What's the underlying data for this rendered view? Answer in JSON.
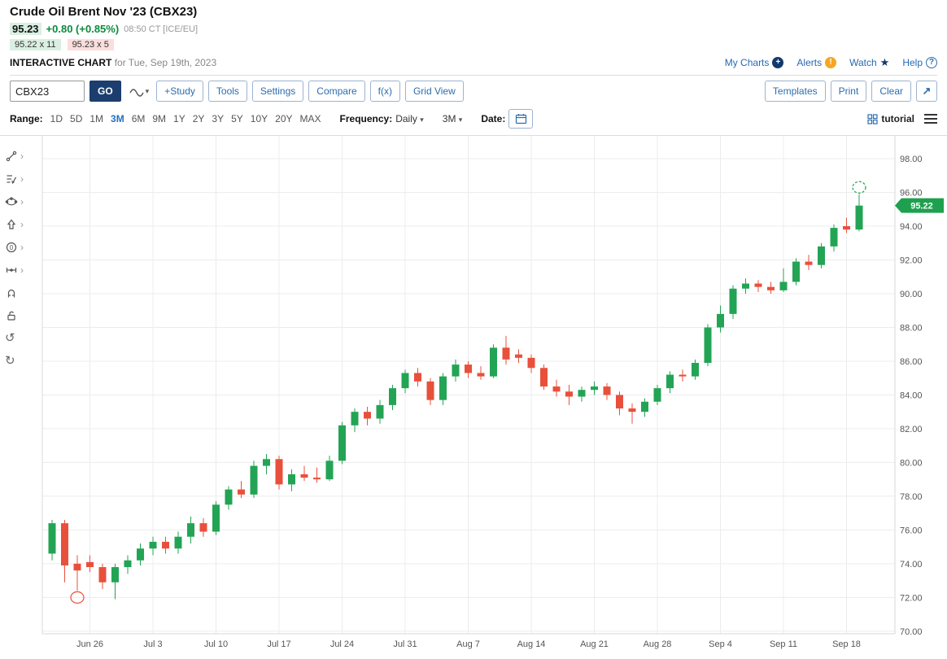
{
  "header": {
    "title": "Crude Oil Brent Nov '23 (CBX23)",
    "last_price": "95.23",
    "change": "+0.80 (+0.85%)",
    "time": "08:50 CT [ICE/EU]",
    "bid": "95.22 x 11",
    "ask": "95.23 x 5",
    "chart_label": "INTERACTIVE CHART",
    "chart_date": "for Tue, Sep 19th, 2023",
    "links": {
      "my_charts": "My Charts",
      "alerts": "Alerts",
      "watch": "Watch",
      "help": "Help"
    }
  },
  "toolbar": {
    "symbol_input": "CBX23",
    "go": "GO",
    "buttons": [
      "+Study",
      "Tools",
      "Settings",
      "Compare",
      "f(x)",
      "Grid View"
    ],
    "templates": "Templates",
    "print": "Print",
    "clear": "Clear",
    "expand_icon": "↗"
  },
  "range_bar": {
    "range_label": "Range:",
    "ranges": [
      "1D",
      "5D",
      "1M",
      "3M",
      "6M",
      "9M",
      "1Y",
      "2Y",
      "3Y",
      "5Y",
      "10Y",
      "20Y",
      "MAX"
    ],
    "selected_range": "3M",
    "frequency_label": "Frequency:",
    "frequency_value": "Daily",
    "period_value": "3M",
    "date_label": "Date:",
    "tutorial": "tutorial"
  },
  "chart_tools": [
    "trendline",
    "annotation",
    "shapes",
    "arrow",
    "counter",
    "measure",
    "magnet",
    "lock",
    "undo",
    "redo"
  ],
  "chart_data": {
    "type": "candlestick",
    "symbol": "CBX23",
    "title": "Crude Oil Brent Nov '23 daily candlesticks, Jun 21 - Sep 19 2023",
    "ylim": [
      69.85,
      99.35
    ],
    "y_ticks": [
      70,
      72,
      74,
      76,
      78,
      80,
      82,
      84,
      86,
      88,
      90,
      92,
      94,
      96,
      98
    ],
    "x_labels": [
      "Jun 26",
      "Jul 3",
      "Jul 10",
      "Jul 17",
      "Jul 24",
      "Jul 31",
      "Aug 7",
      "Aug 14",
      "Aug 21",
      "Aug 28",
      "Sep 4",
      "Sep 11",
      "Sep 18"
    ],
    "x_label_indices": [
      3,
      8,
      13,
      18,
      23,
      28,
      33,
      38,
      43,
      48,
      53,
      58,
      63
    ],
    "last_price": 95.22,
    "last_price_label": "95.22",
    "up_color": "#23a455",
    "down_color": "#e8503c",
    "tag_color": "#1fa04e",
    "grid": true,
    "ohlc_columns": [
      "open",
      "high",
      "low",
      "close"
    ],
    "ohlc": [
      [
        74.6,
        76.6,
        74.2,
        76.4
      ],
      [
        76.4,
        76.6,
        72.9,
        73.9
      ],
      [
        74.0,
        74.5,
        72.4,
        73.6
      ],
      [
        74.1,
        74.5,
        73.5,
        73.8
      ],
      [
        73.8,
        74.0,
        72.5,
        72.9
      ],
      [
        72.9,
        74.0,
        71.9,
        73.8
      ],
      [
        73.8,
        74.5,
        73.4,
        74.2
      ],
      [
        74.2,
        75.2,
        73.9,
        74.9
      ],
      [
        74.9,
        75.6,
        74.5,
        75.3
      ],
      [
        75.3,
        75.6,
        74.6,
        74.9
      ],
      [
        74.9,
        75.9,
        74.6,
        75.6
      ],
      [
        75.6,
        76.8,
        75.2,
        76.4
      ],
      [
        76.4,
        76.7,
        75.6,
        75.9
      ],
      [
        75.9,
        77.7,
        75.7,
        77.5
      ],
      [
        77.5,
        78.6,
        77.2,
        78.4
      ],
      [
        78.4,
        78.9,
        77.9,
        78.1
      ],
      [
        78.1,
        80.1,
        77.9,
        79.8
      ],
      [
        79.8,
        80.5,
        79.3,
        80.2
      ],
      [
        80.2,
        80.4,
        78.4,
        78.7
      ],
      [
        78.7,
        79.6,
        78.3,
        79.3
      ],
      [
        79.3,
        79.8,
        78.9,
        79.1
      ],
      [
        79.1,
        79.7,
        78.8,
        79.0
      ],
      [
        79.0,
        80.4,
        78.9,
        80.1
      ],
      [
        80.1,
        82.4,
        79.9,
        82.2
      ],
      [
        82.2,
        83.2,
        81.8,
        83.0
      ],
      [
        83.0,
        83.3,
        82.2,
        82.6
      ],
      [
        82.6,
        83.7,
        82.3,
        83.4
      ],
      [
        83.4,
        84.6,
        83.1,
        84.4
      ],
      [
        84.4,
        85.5,
        84.1,
        85.3
      ],
      [
        85.3,
        85.6,
        84.5,
        84.8
      ],
      [
        84.8,
        85.0,
        83.4,
        83.7
      ],
      [
        83.7,
        85.3,
        83.4,
        85.1
      ],
      [
        85.1,
        86.1,
        84.8,
        85.8
      ],
      [
        85.8,
        86.0,
        85.0,
        85.3
      ],
      [
        85.3,
        85.7,
        84.9,
        85.1
      ],
      [
        85.1,
        87.0,
        85.0,
        86.8
      ],
      [
        86.8,
        87.5,
        85.8,
        86.1
      ],
      [
        86.4,
        86.7,
        85.9,
        86.2
      ],
      [
        86.2,
        86.4,
        85.3,
        85.6
      ],
      [
        85.6,
        85.8,
        84.3,
        84.5
      ],
      [
        84.5,
        84.9,
        83.9,
        84.2
      ],
      [
        84.2,
        84.6,
        83.4,
        83.9
      ],
      [
        83.9,
        84.5,
        83.6,
        84.3
      ],
      [
        84.3,
        84.8,
        84.0,
        84.5
      ],
      [
        84.5,
        84.7,
        83.7,
        84.0
      ],
      [
        84.0,
        84.2,
        82.8,
        83.2
      ],
      [
        83.2,
        83.5,
        82.3,
        83.0
      ],
      [
        83.0,
        83.8,
        82.7,
        83.6
      ],
      [
        83.6,
        84.6,
        83.4,
        84.4
      ],
      [
        84.4,
        85.4,
        84.1,
        85.2
      ],
      [
        85.2,
        85.5,
        84.8,
        85.1
      ],
      [
        85.1,
        86.1,
        84.9,
        85.9
      ],
      [
        85.9,
        88.2,
        85.7,
        88.0
      ],
      [
        88.0,
        89.3,
        87.7,
        88.8
      ],
      [
        88.8,
        90.5,
        88.5,
        90.3
      ],
      [
        90.3,
        90.9,
        90.0,
        90.6
      ],
      [
        90.6,
        90.8,
        90.1,
        90.4
      ],
      [
        90.4,
        90.7,
        90.0,
        90.2
      ],
      [
        90.2,
        91.5,
        90.1,
        90.7
      ],
      [
        90.7,
        92.1,
        90.5,
        91.9
      ],
      [
        91.9,
        92.3,
        91.4,
        91.7
      ],
      [
        91.7,
        93.0,
        91.5,
        92.8
      ],
      [
        92.8,
        94.1,
        92.5,
        93.9
      ],
      [
        94.0,
        94.5,
        93.6,
        93.8
      ],
      [
        93.8,
        95.9,
        93.7,
        95.22
      ]
    ],
    "annotations": [
      {
        "type": "ellipse",
        "index": 2,
        "price": 72.0,
        "color": "#e8503c",
        "dashed": false
      },
      {
        "type": "ellipse",
        "index": 64,
        "price": 96.3,
        "color": "#23a455",
        "dashed": true
      }
    ]
  }
}
